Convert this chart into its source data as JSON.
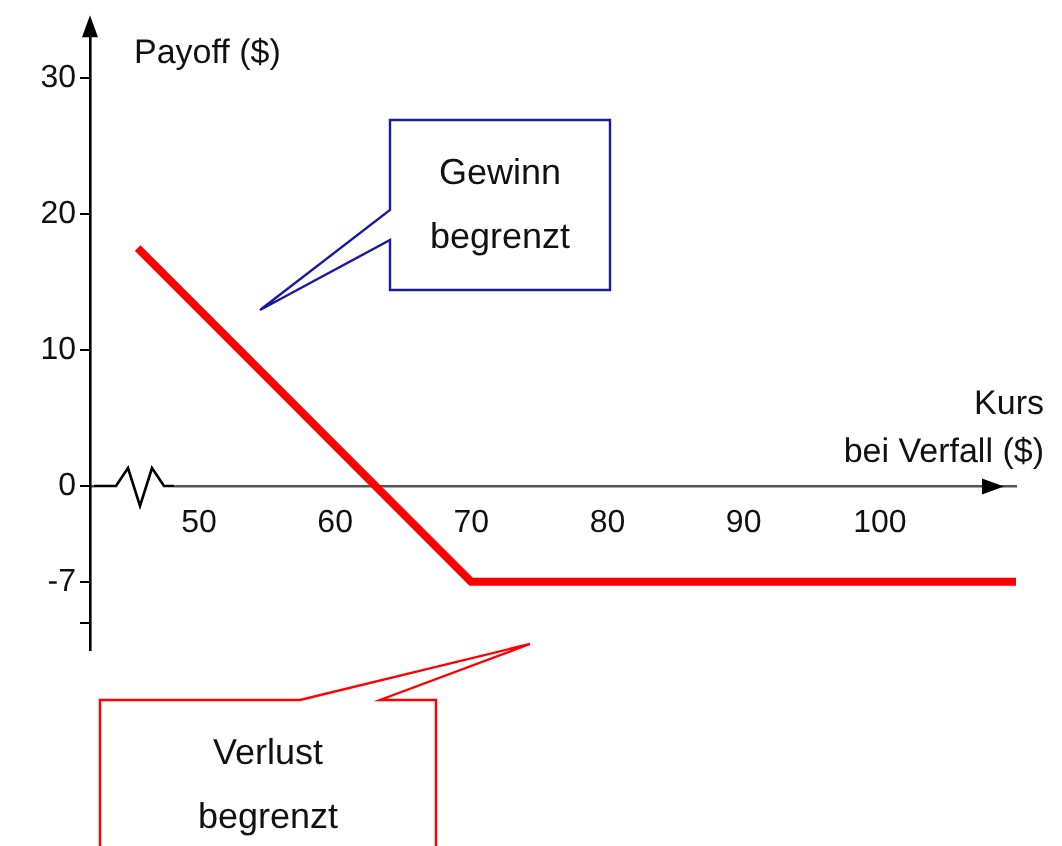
{
  "chart_data": {
    "type": "line",
    "xlabel": "Kurs bei Verfall ($)",
    "ylabel": "Payoff ($)",
    "x": [
      45.5,
      70,
      110
    ],
    "series": [
      {
        "color": "#ff0000",
        "values": [
          17.5,
          -7,
          -7
        ]
      }
    ],
    "xlim": [
      42,
      110
    ],
    "xticks": [
      50,
      60,
      70,
      80,
      90,
      100
    ],
    "ylim": [
      -12,
      34
    ],
    "yticks": [
      30,
      20,
      10,
      0,
      -7,
      {
        "value": -10,
        "label": null
      }
    ],
    "grid": false,
    "legend": false,
    "marker": "none",
    "line_style": "solid",
    "annotations": [
      "Gewinn begrenzt",
      "Verlust begrenzt"
    ]
  }
}
